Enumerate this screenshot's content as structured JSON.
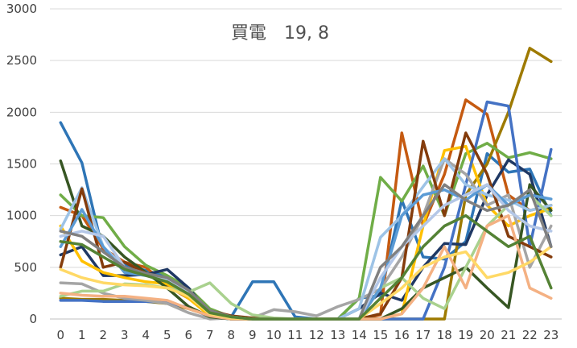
{
  "chart_data": {
    "type": "line",
    "title": "買電　19, 8",
    "xlabel": "",
    "ylabel": "",
    "x": [
      0,
      1,
      2,
      3,
      4,
      5,
      6,
      7,
      8,
      9,
      10,
      11,
      12,
      13,
      14,
      15,
      16,
      17,
      18,
      19,
      20,
      21,
      22,
      23
    ],
    "x_tick_labels": [
      "0",
      "1",
      "2",
      "3",
      "4",
      "5",
      "6",
      "7",
      "8",
      "9",
      "10",
      "11",
      "12",
      "13",
      "14",
      "15",
      "16",
      "17",
      "18",
      "19",
      "20",
      "21",
      "22",
      "23"
    ],
    "ylim": [
      0,
      3000
    ],
    "y_ticks": [
      0,
      500,
      1000,
      1500,
      2000,
      2500,
      3000
    ],
    "y_tick_labels": [
      "0",
      "500",
      "1000",
      "1500",
      "2000",
      "2500",
      "3000"
    ],
    "grid": "horizontal",
    "legend": "none",
    "series": [
      {
        "color": "#2e75b6",
        "values": [
          1900,
          1510,
          650,
          520,
          470,
          410,
          260,
          70,
          20,
          360,
          360,
          20,
          0,
          0,
          200,
          230,
          1150,
          600,
          580,
          750,
          1600,
          1420,
          1450,
          1000
        ]
      },
      {
        "color": "#c55a11",
        "values": [
          1080,
          1000,
          680,
          550,
          500,
          320,
          200,
          40,
          0,
          0,
          0,
          0,
          0,
          0,
          0,
          40,
          1800,
          900,
          1400,
          2120,
          1980,
          1200,
          1050,
          1100
        ]
      },
      {
        "color": "#9e7a00",
        "values": [
          200,
          190,
          190,
          180,
          170,
          150,
          100,
          30,
          0,
          0,
          0,
          0,
          0,
          0,
          0,
          0,
          0,
          0,
          0,
          1200,
          1500,
          2000,
          2620,
          2490
        ]
      },
      {
        "color": "#70ad47",
        "values": [
          1200,
          1000,
          980,
          700,
          520,
          420,
          300,
          100,
          20,
          0,
          0,
          0,
          0,
          0,
          200,
          1370,
          1140,
          1480,
          1000,
          1600,
          1700,
          1560,
          1610,
          1550
        ]
      },
      {
        "color": "#1f3864",
        "values": [
          620,
          700,
          420,
          420,
          430,
          480,
          300,
          50,
          20,
          0,
          0,
          0,
          0,
          0,
          100,
          250,
          180,
          500,
          730,
          720,
          1200,
          1540,
          1400,
          700
        ]
      },
      {
        "color": "#ffc000",
        "values": [
          900,
          560,
          450,
          400,
          360,
          340,
          200,
          30,
          0,
          0,
          0,
          0,
          0,
          0,
          0,
          0,
          50,
          900,
          1630,
          1670,
          1100,
          900,
          1000,
          1070
        ]
      },
      {
        "color": "#4472c4",
        "values": [
          180,
          180,
          170,
          170,
          170,
          160,
          110,
          20,
          0,
          0,
          0,
          0,
          0,
          0,
          0,
          0,
          0,
          0,
          500,
          1300,
          2100,
          2060,
          700,
          1640
        ]
      },
      {
        "color": "#a5a5a5",
        "values": [
          350,
          340,
          250,
          200,
          180,
          150,
          60,
          0,
          10,
          10,
          90,
          70,
          30,
          120,
          190,
          290,
          600,
          1000,
          1550,
          1400,
          1100,
          1200,
          500,
          900
        ]
      },
      {
        "color": "#375623",
        "values": [
          1530,
          900,
          800,
          600,
          450,
          300,
          120,
          20,
          0,
          0,
          0,
          0,
          0,
          0,
          0,
          0,
          100,
          300,
          400,
          500,
          300,
          110,
          1300,
          1050
        ]
      },
      {
        "color": "#9dc3e6",
        "values": [
          870,
          1270,
          700,
          500,
          430,
          380,
          250,
          60,
          20,
          0,
          0,
          0,
          0,
          0,
          100,
          790,
          1000,
          1280,
          1550,
          1300,
          1200,
          1150,
          1050,
          1100
        ]
      },
      {
        "color": "#843c0c",
        "values": [
          500,
          1260,
          500,
          550,
          440,
          390,
          250,
          80,
          30,
          10,
          0,
          0,
          0,
          0,
          0,
          50,
          400,
          1720,
          1000,
          1800,
          1400,
          800,
          700,
          600
        ]
      },
      {
        "color": "#a9d18e",
        "values": [
          220,
          270,
          270,
          340,
          330,
          300,
          260,
          350,
          150,
          40,
          10,
          0,
          0,
          0,
          0,
          300,
          400,
          200,
          100,
          500,
          900,
          1100,
          1200,
          1000
        ]
      },
      {
        "color": "#f4b183",
        "values": [
          250,
          230,
          220,
          220,
          200,
          180,
          100,
          30,
          0,
          0,
          0,
          0,
          0,
          0,
          0,
          0,
          50,
          300,
          700,
          300,
          900,
          1000,
          300,
          200
        ]
      },
      {
        "color": "#5b9bd5",
        "values": [
          700,
          1060,
          700,
          450,
          420,
          370,
          250,
          80,
          20,
          0,
          0,
          0,
          0,
          0,
          0,
          300,
          1000,
          1200,
          1250,
          1150,
          1300,
          1100,
          1200,
          1160
        ]
      },
      {
        "color": "#b4c7e7",
        "values": [
          800,
          850,
          800,
          500,
          440,
          380,
          250,
          70,
          20,
          0,
          0,
          0,
          0,
          0,
          0,
          400,
          700,
          900,
          1100,
          1200,
          1300,
          1050,
          900,
          850
        ]
      },
      {
        "color": "#ffd966",
        "values": [
          480,
          400,
          350,
          330,
          320,
          300,
          220,
          50,
          10,
          0,
          0,
          0,
          0,
          0,
          0,
          150,
          300,
          500,
          600,
          650,
          400,
          450,
          550,
          700
        ]
      },
      {
        "color": "#808080",
        "values": [
          850,
          800,
          650,
          500,
          440,
          400,
          280,
          80,
          20,
          0,
          0,
          0,
          0,
          0,
          0,
          500,
          700,
          1000,
          1300,
          1150,
          1050,
          1100,
          1250,
          700
        ]
      },
      {
        "color": "#548235",
        "values": [
          750,
          720,
          600,
          480,
          420,
          360,
          240,
          60,
          20,
          0,
          0,
          0,
          0,
          0,
          0,
          200,
          400,
          700,
          900,
          1000,
          850,
          700,
          800,
          300
        ]
      }
    ]
  }
}
